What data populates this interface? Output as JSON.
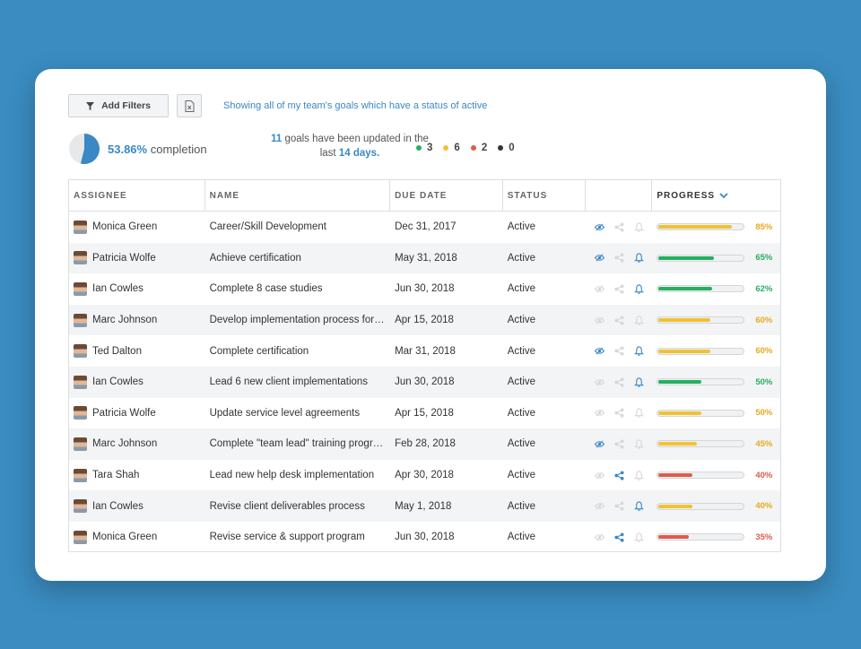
{
  "toolbar": {
    "add_filters": "Add Filters",
    "filter_description": "Showing all of my team's goals which have a status of active"
  },
  "summary": {
    "completion_pct": "53.86%",
    "completion_label": "completion",
    "completion_fraction": 0.5386,
    "updated_count": "11",
    "updated_text_1": "goals have been updated in the",
    "updated_text_2": "last",
    "updated_days": "14 days.",
    "status_counts": [
      {
        "color": "#27ae60",
        "value": "3"
      },
      {
        "color": "#f1c232",
        "value": "6"
      },
      {
        "color": "#e05b4a",
        "value": "2"
      },
      {
        "color": "#333333",
        "value": "0"
      }
    ]
  },
  "columns": {
    "assignee": "ASSIGNEE",
    "name": "NAME",
    "due_date": "DUE DATE",
    "status": "STATUS",
    "progress": "PROGRESS"
  },
  "colors": {
    "accent": "#3a88c4",
    "green": "#27ae60",
    "yellow": "#f1c232",
    "red": "#e05b4a",
    "icon_inactive": "#d5d8db"
  },
  "rows": [
    {
      "assignee": "Monica Green",
      "name": "Career/Skill Development",
      "due": "Dec 31, 2017",
      "status": "Active",
      "eye": true,
      "share": false,
      "bell": false,
      "progress": 0.85,
      "label": "85%",
      "color": "#f1c232"
    },
    {
      "assignee": "Patricia Wolfe",
      "name": "Achieve certification",
      "due": "May 31, 2018",
      "status": "Active",
      "eye": true,
      "share": false,
      "bell": true,
      "progress": 0.65,
      "label": "65%",
      "color": "#27ae60"
    },
    {
      "assignee": "Ian Cowles",
      "name": "Complete 8 case studies",
      "due": "Jun 30, 2018",
      "status": "Active",
      "eye": false,
      "share": false,
      "bell": true,
      "progress": 0.62,
      "label": "62%",
      "color": "#27ae60"
    },
    {
      "assignee": "Marc Johnson",
      "name": "Develop implementation process for …",
      "due": "Apr 15, 2018",
      "status": "Active",
      "eye": false,
      "share": false,
      "bell": false,
      "progress": 0.6,
      "label": "60%",
      "color": "#f1c232"
    },
    {
      "assignee": "Ted Dalton",
      "name": "Complete certification",
      "due": "Mar 31, 2018",
      "status": "Active",
      "eye": true,
      "share": false,
      "bell": true,
      "progress": 0.6,
      "label": "60%",
      "color": "#f1c232"
    },
    {
      "assignee": "Ian Cowles",
      "name": "Lead 6 new client implementations",
      "due": "Jun 30, 2018",
      "status": "Active",
      "eye": false,
      "share": false,
      "bell": true,
      "progress": 0.5,
      "label": "50%",
      "color": "#27ae60"
    },
    {
      "assignee": "Patricia Wolfe",
      "name": "Update service level agreements",
      "due": "Apr 15, 2018",
      "status": "Active",
      "eye": false,
      "share": false,
      "bell": false,
      "progress": 0.5,
      "label": "50%",
      "color": "#f1c232"
    },
    {
      "assignee": "Marc Johnson",
      "name": "Complete \"team lead\" training progr…",
      "due": "Feb 28, 2018",
      "status": "Active",
      "eye": true,
      "share": false,
      "bell": false,
      "progress": 0.45,
      "label": "45%",
      "color": "#f1c232"
    },
    {
      "assignee": "Tara Shah",
      "name": "Lead new help desk implementation",
      "due": "Apr 30, 2018",
      "status": "Active",
      "eye": false,
      "share": true,
      "bell": false,
      "progress": 0.4,
      "label": "40%",
      "color": "#e05b4a"
    },
    {
      "assignee": "Ian Cowles",
      "name": "Revise client deliverables process",
      "due": "May 1, 2018",
      "status": "Active",
      "eye": false,
      "share": false,
      "bell": true,
      "progress": 0.4,
      "label": "40%",
      "color": "#f1c232"
    },
    {
      "assignee": "Monica Green",
      "name": "Revise service & support program",
      "due": "Jun 30, 2018",
      "status": "Active",
      "eye": false,
      "share": true,
      "bell": false,
      "progress": 0.35,
      "label": "35%",
      "color": "#e05b4a"
    }
  ]
}
